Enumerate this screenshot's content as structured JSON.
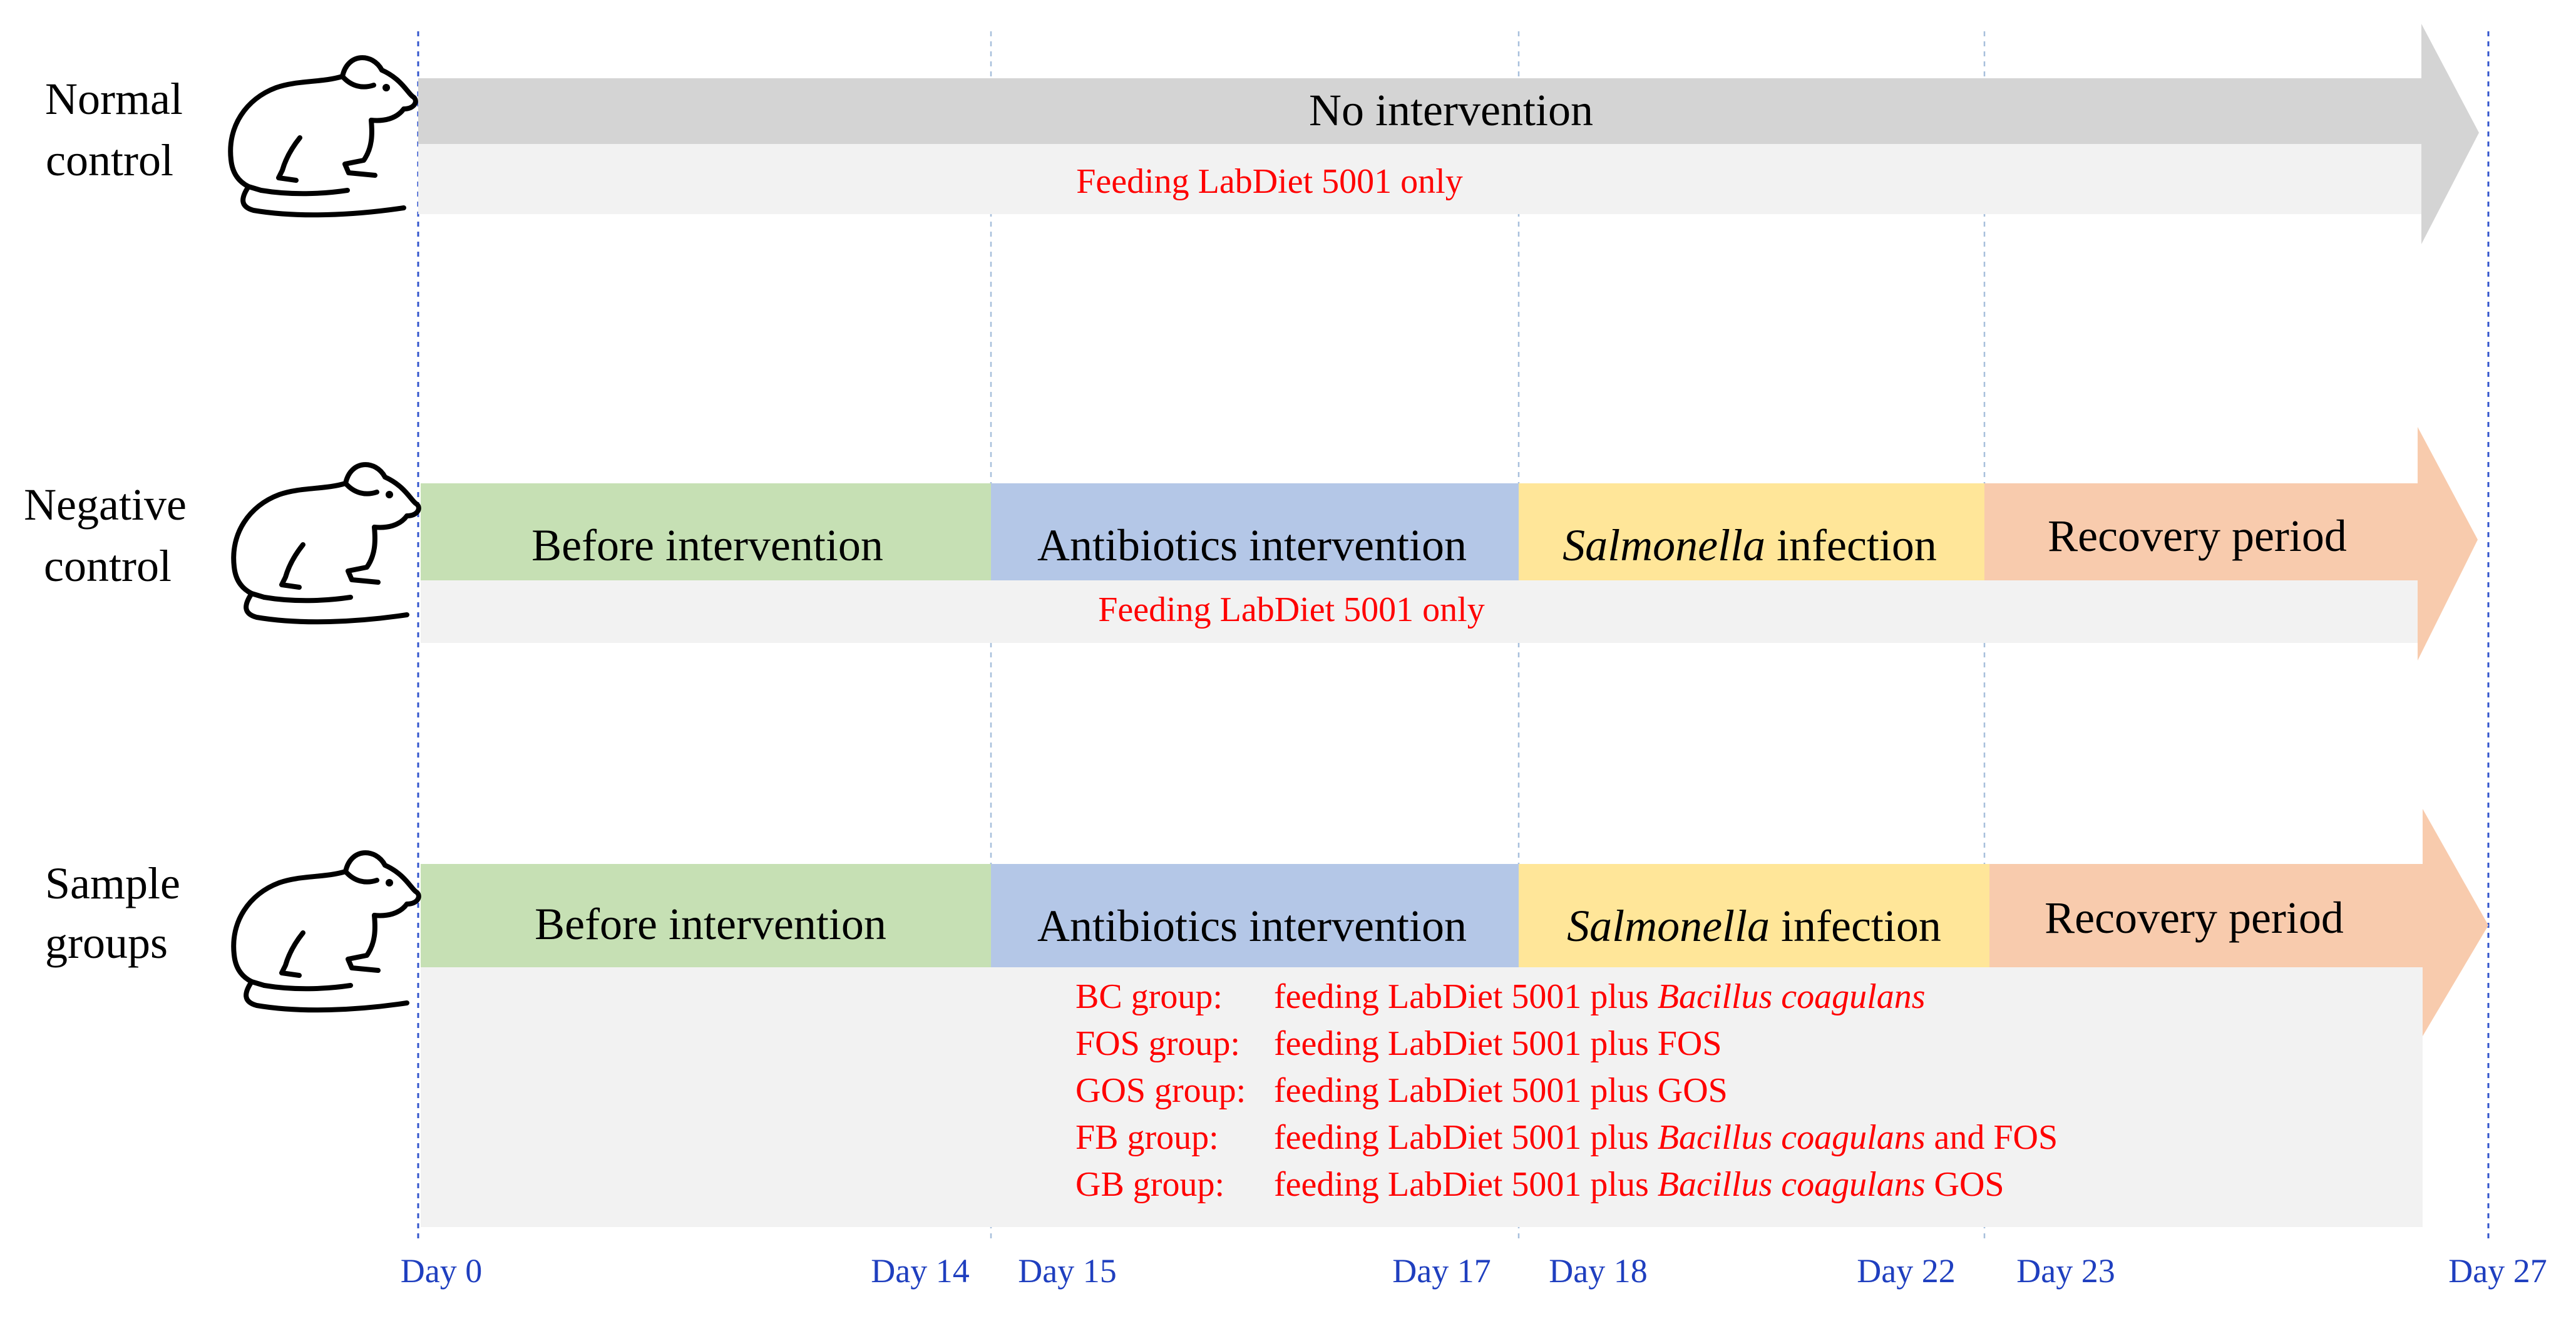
{
  "rows": [
    {
      "id": "normal-control",
      "label_line1": "Normal",
      "label_line2": "control",
      "phase": "No intervention",
      "note": "Feeding LabDiet 5001 only"
    },
    {
      "id": "negative-control",
      "label_line1": "Negative",
      "label_line2": "control",
      "phases": [
        {
          "label": "Before intervention"
        },
        {
          "label": "Antibiotics intervention"
        },
        {
          "label_italic": "Salmonella",
          "label_rest": " infection"
        },
        {
          "label": "Recovery period"
        }
      ],
      "note": "Feeding LabDiet 5001 only"
    },
    {
      "id": "sample-groups",
      "label_line1": "Sample",
      "label_line2": "groups",
      "phases": [
        {
          "label": "Before intervention"
        },
        {
          "label": "Antibiotics intervention"
        },
        {
          "label_italic": "Salmonella",
          "label_rest": " infection"
        },
        {
          "label": "Recovery period"
        }
      ],
      "groups": [
        {
          "name": "BC group:",
          "text": "feeding LabDiet 5001 plus ",
          "italic": "Bacillus coagulans",
          "tail": ""
        },
        {
          "name": "FOS group:",
          "text": "feeding LabDiet 5001 plus FOS",
          "italic": "",
          "tail": ""
        },
        {
          "name": "GOS group:",
          "text": "feeding LabDiet 5001 plus GOS",
          "italic": "",
          "tail": ""
        },
        {
          "name": "FB group:",
          "text": "feeding LabDiet 5001 plus ",
          "italic": "Bacillus coagulans",
          "tail": " and FOS"
        },
        {
          "name": "GB group:",
          "text": "feeding LabDiet 5001 plus ",
          "italic": "Bacillus coagulans",
          "tail": " GOS"
        }
      ]
    }
  ],
  "timeline": {
    "days": [
      "Day 0",
      "Day 14",
      "Day 15",
      "Day 17",
      "Day 18",
      "Day 22",
      "Day 23",
      "Day 27"
    ]
  },
  "colors": {
    "normal_arrow": "#d4d4d4",
    "band": "#f2f2f2",
    "before": "#c6e0b4",
    "antibiotics": "#b4c7e7",
    "salmonella": "#ffe699",
    "recovery": "#f8cbad",
    "note_text": "#ff0000",
    "day_text": "#1f3fbf",
    "guide_line": "#3355cc"
  }
}
